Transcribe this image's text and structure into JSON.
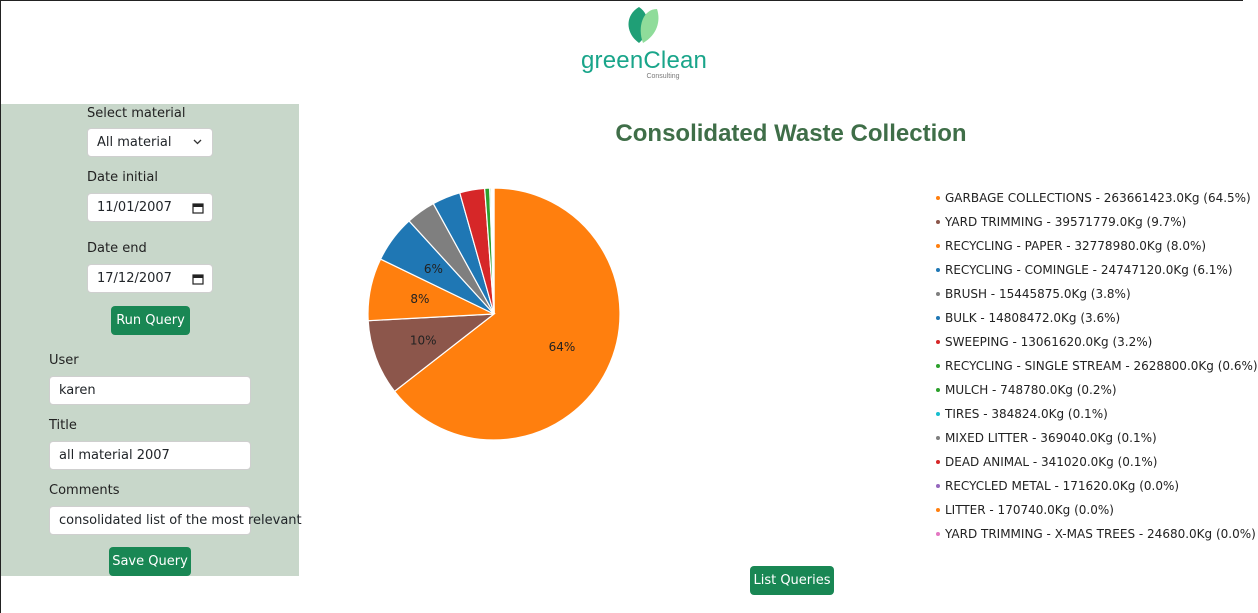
{
  "brand": {
    "name": "greenClean",
    "tagline": "Consulting",
    "leaf_colors": [
      "#1f9f76",
      "#8fdc9a"
    ]
  },
  "sidebar": {
    "material_label": "Select material",
    "material_value": "All material",
    "date_initial_label": "Date initial",
    "date_initial_value": "11/01/2007",
    "date_end_label": "Date end",
    "date_end_value": "17/12/2007",
    "run_query_label": "Run Query",
    "user_label": "User",
    "user_value": "karen",
    "title_label": "Title",
    "title_value": "all material 2007",
    "comments_label": "Comments",
    "comments_value": "consolidated list of the most relevant",
    "save_query_label": "Save Query"
  },
  "main": {
    "title": "Consolidated Waste Collection",
    "list_queries_label": "List Queries"
  },
  "colors": {
    "sidebar_bg": "#c8d7ca",
    "button": "#198754",
    "title": "#3f6e48"
  },
  "chart_data": {
    "type": "pie",
    "title": "Consolidated Waste Collection",
    "legend_position": "right",
    "slices": [
      {
        "label": "GARBAGE COLLECTIONS - 263661423.0Kg (64.5%)",
        "value": 263661423.0,
        "pct_label": "64%",
        "color": "#ff7f0e"
      },
      {
        "label": "YARD TRIMMING - 39571779.0Kg (9.7%)",
        "value": 39571779.0,
        "pct_label": "10%",
        "color": "#8c564b"
      },
      {
        "label": "RECYCLING - PAPER - 32778980.0Kg (8.0%)",
        "value": 32778980.0,
        "pct_label": "8%",
        "color": "#ff7f0e"
      },
      {
        "label": "RECYCLING - COMINGLE - 24747120.0Kg (6.1%)",
        "value": 24747120.0,
        "pct_label": "6%",
        "color": "#1f77b4"
      },
      {
        "label": "BRUSH - 15445875.0Kg (3.8%)",
        "value": 15445875.0,
        "pct_label": "",
        "color": "#7f7f7f"
      },
      {
        "label": "BULK - 14808472.0Kg (3.6%)",
        "value": 14808472.0,
        "pct_label": "",
        "color": "#1f77b4"
      },
      {
        "label": "SWEEPING - 13061620.0Kg (3.2%)",
        "value": 13061620.0,
        "pct_label": "",
        "color": "#d62728"
      },
      {
        "label": "RECYCLING - SINGLE STREAM - 2628800.0Kg (0.6%)",
        "value": 2628800.0,
        "pct_label": "",
        "color": "#2ca02c"
      },
      {
        "label": "MULCH - 748780.0Kg (0.2%)",
        "value": 748780.0,
        "pct_label": "",
        "color": "#2ca02c"
      },
      {
        "label": "TIRES - 384824.0Kg (0.1%)",
        "value": 384824.0,
        "pct_label": "",
        "color": "#17becf"
      },
      {
        "label": "MIXED LITTER - 369040.0Kg (0.1%)",
        "value": 369040.0,
        "pct_label": "",
        "color": "#7f7f7f"
      },
      {
        "label": "DEAD ANIMAL - 341020.0Kg (0.1%)",
        "value": 341020.0,
        "pct_label": "",
        "color": "#d62728"
      },
      {
        "label": "RECYCLED METAL - 171620.0Kg (0.0%)",
        "value": 171620.0,
        "pct_label": "",
        "color": "#9467bd"
      },
      {
        "label": "LITTER - 170740.0Kg (0.0%)",
        "value": 170740.0,
        "pct_label": "",
        "color": "#ff7f0e"
      },
      {
        "label": "YARD TRIMMING - X-MAS TREES - 24680.0Kg (0.0%)",
        "value": 24680.0,
        "pct_label": "",
        "color": "#e377c2"
      }
    ]
  }
}
